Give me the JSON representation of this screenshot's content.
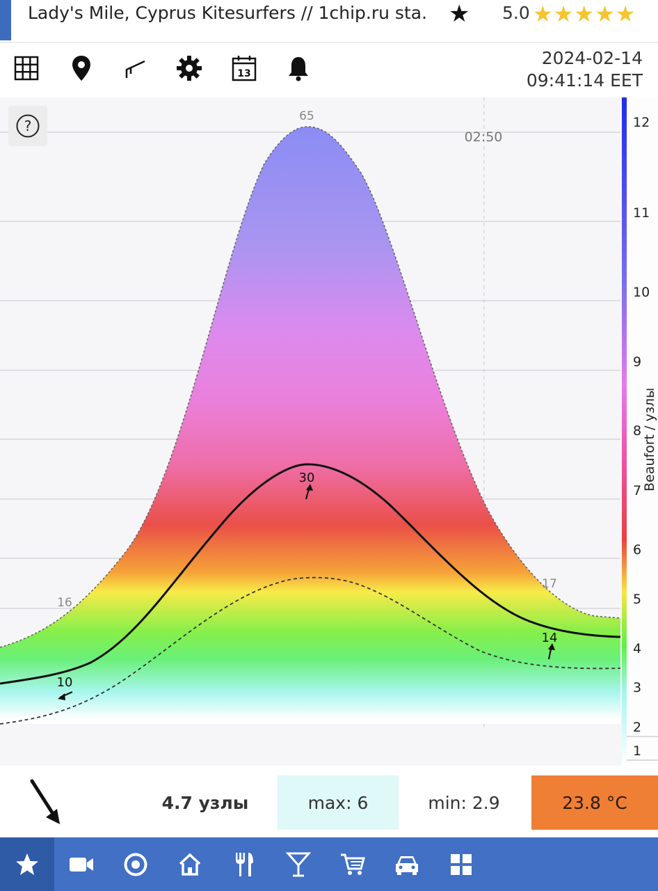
{
  "header": {
    "title": "Lady's Mile, Cyprus Kitesurfers // 1chip.ru sta.",
    "rating": "5.0",
    "stars": "★★★★★",
    "favorite_icon": "star-icon",
    "accent_color": "#3d6cbf",
    "star_color": "#f5c431"
  },
  "toolbar": {
    "tools": [
      "grid-icon",
      "map-pin-icon",
      "wind-vane-icon",
      "gear-icon",
      "calendar-icon",
      "bell-icon"
    ],
    "calendar_day": "13",
    "date": "2024-02-14",
    "time": "09:41:14 EET"
  },
  "chart": {
    "help_label": "?",
    "time_marker": "02:50",
    "axis_label": "Beaufort / узлы",
    "gust_labels": [
      "16",
      "65",
      "17"
    ],
    "wind_labels": [
      "10",
      "30",
      "14"
    ],
    "right_ticks": [
      "12",
      "11",
      "10",
      "9",
      "8",
      "7",
      "6",
      "5",
      "4",
      "3",
      "2",
      "1"
    ]
  },
  "chart_data": {
    "type": "area",
    "title": "",
    "ylabel": "Beaufort / узлы",
    "series": [
      {
        "name": "",
        "values": [
          16,
          65,
          17
        ]
      },
      {
        "name": "",
        "values": [
          10,
          30,
          14
        ]
      }
    ],
    "time_marker": "02:50",
    "y_axis_ticks": [
      12,
      11,
      10,
      9,
      8,
      7,
      6,
      5,
      4,
      3,
      2,
      1
    ],
    "grid": true
  },
  "stats": {
    "current": "4.7 узлы",
    "max": "max: 6",
    "min": "min: 2.9",
    "temperature": "23.8 °C",
    "temp_color": "#ef7f35",
    "max_bg_color": "#dff8f8"
  },
  "nav": {
    "items": [
      "star-icon",
      "video-camera-icon",
      "target-icon",
      "home-icon",
      "restaurant-icon",
      "cocktail-icon",
      "shopping-cart-icon",
      "car-icon",
      "apps-grid-icon"
    ],
    "active": "star-icon",
    "bg_color": "#4170c4"
  }
}
